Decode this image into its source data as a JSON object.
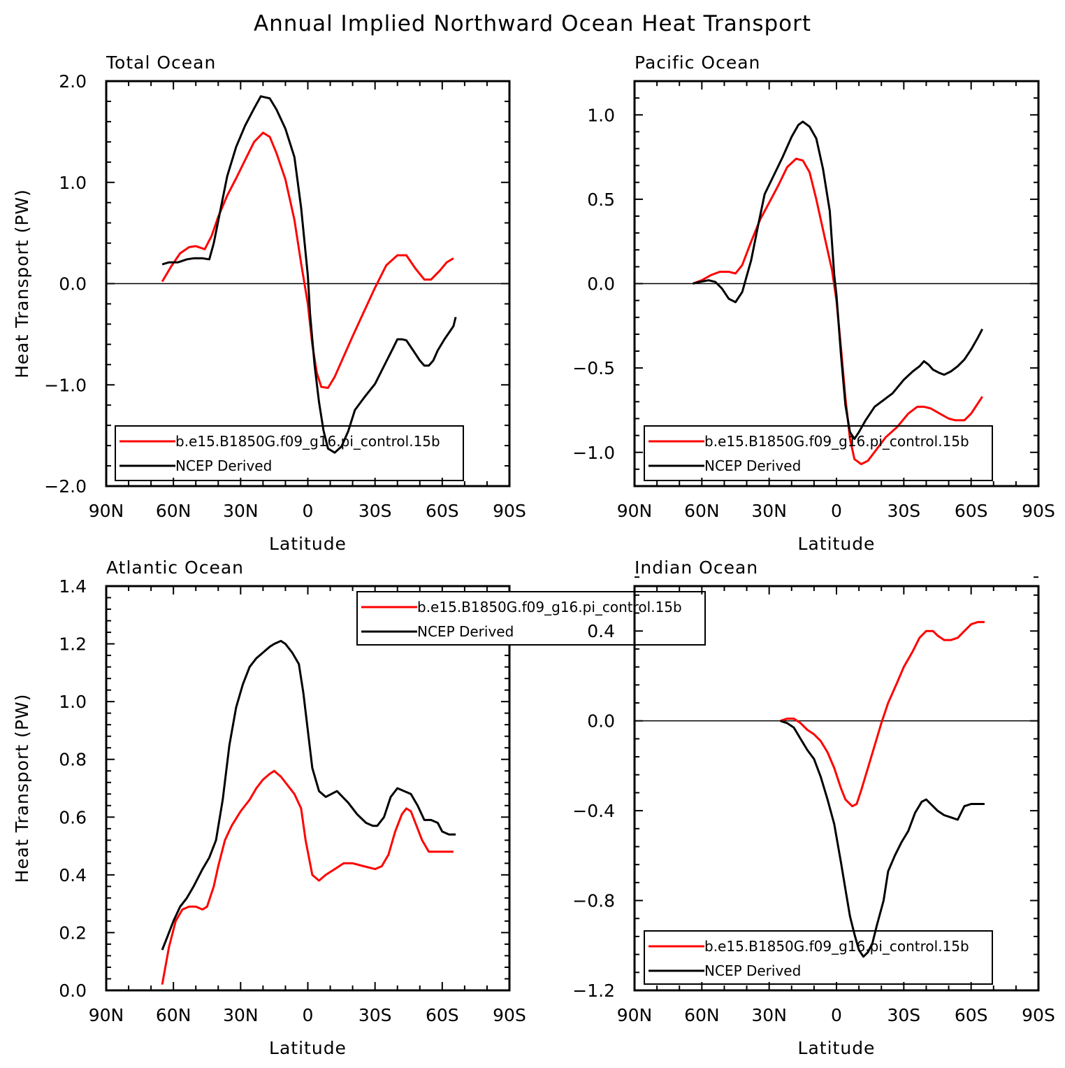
{
  "title": "Annual Implied Northward Ocean Heat Transport",
  "colors": {
    "model": "#ff0000",
    "obs": "#000000"
  },
  "chart_data": [
    {
      "type": "line",
      "title": "Total Ocean",
      "xlabel": "Latitude",
      "ylabel": "Heat Transport (PW)",
      "xlim": [
        90,
        -90
      ],
      "ylim": [
        -2.0,
        2.0
      ],
      "xticks": [
        90,
        60,
        30,
        0,
        -30,
        -60,
        -90
      ],
      "xtick_labels": [
        "90N",
        "60N",
        "30N",
        "0",
        "30S",
        "60S",
        "90S"
      ],
      "yticks": [
        -2.0,
        -1.0,
        0.0,
        1.0,
        2.0
      ],
      "ytick_labels": [
        "−2.0",
        "−1.0",
        "0.0",
        "1.0",
        "2.0"
      ],
      "grid": false,
      "zero_line": true,
      "legend_position": "bottom",
      "series": [
        {
          "name": "b.e15.B1850G.f09_g16.pi_control.15b",
          "color": "#ff0000",
          "x": [
            65,
            61,
            57,
            53,
            50,
            46,
            43,
            40,
            36,
            32,
            28,
            24,
            20,
            17,
            14,
            10,
            6,
            3,
            0,
            -2,
            -4,
            -6,
            -9,
            -12,
            -16,
            -20,
            -25,
            -30,
            -35,
            -40,
            -44,
            -48,
            -52,
            -55,
            -59,
            -62,
            -65
          ],
          "y": [
            0.02,
            0.17,
            0.3,
            0.36,
            0.37,
            0.34,
            0.47,
            0.66,
            0.87,
            1.04,
            1.22,
            1.4,
            1.49,
            1.45,
            1.29,
            1.03,
            0.63,
            0.2,
            -0.2,
            -0.6,
            -0.88,
            -1.02,
            -1.03,
            -0.92,
            -0.72,
            -0.52,
            -0.28,
            -0.04,
            0.18,
            0.28,
            0.28,
            0.15,
            0.04,
            0.04,
            0.13,
            0.21,
            0.25
          ]
        },
        {
          "name": "NCEP Derived",
          "color": "#000000",
          "x": [
            65,
            62,
            58,
            54,
            51,
            47,
            44,
            42,
            39,
            36,
            32,
            28,
            24,
            21,
            19,
            17,
            14,
            10,
            6,
            3,
            0,
            -1,
            -3,
            -5,
            -7,
            -9,
            -12,
            -15,
            -18,
            -21,
            -25,
            -30,
            -35,
            -38,
            -40,
            -42,
            -44,
            -47,
            -50,
            -52,
            -54,
            -56,
            -58,
            -61,
            -65,
            -66
          ],
          "y": [
            0.19,
            0.21,
            0.21,
            0.24,
            0.25,
            0.25,
            0.24,
            0.4,
            0.73,
            1.06,
            1.35,
            1.56,
            1.73,
            1.85,
            1.84,
            1.83,
            1.72,
            1.53,
            1.25,
            0.75,
            0.08,
            -0.3,
            -0.8,
            -1.17,
            -1.45,
            -1.63,
            -1.67,
            -1.61,
            -1.46,
            -1.25,
            -1.13,
            -0.99,
            -0.77,
            -0.64,
            -0.55,
            -0.55,
            -0.56,
            -0.66,
            -0.76,
            -0.81,
            -0.81,
            -0.76,
            -0.66,
            -0.55,
            -0.42,
            -0.33
          ]
        }
      ]
    },
    {
      "type": "line",
      "title": "Pacific Ocean",
      "xlabel": "Latitude",
      "ylabel": "",
      "xlim": [
        90,
        -90
      ],
      "ylim": [
        -1.2,
        1.2
      ],
      "xticks": [
        90,
        60,
        30,
        0,
        -30,
        -60,
        -90
      ],
      "xtick_labels": [
        "90N",
        "60N",
        "30N",
        "0",
        "30S",
        "60S",
        "90S"
      ],
      "yticks": [
        -1.0,
        -0.5,
        0.0,
        0.5,
        1.0
      ],
      "ytick_labels": [
        "−1.0",
        "−0.5",
        "0.0",
        "0.5",
        "1.0"
      ],
      "grid": false,
      "zero_line": true,
      "legend_position": "bottom",
      "series": [
        {
          "name": "b.e15.B1850G.f09_g16.pi_control.15b",
          "color": "#ff0000",
          "x": [
            64,
            60,
            56,
            52,
            48,
            45,
            42,
            38,
            34,
            30,
            26,
            22,
            18,
            15,
            12,
            9,
            5,
            2,
            0,
            -2,
            -4,
            -6,
            -8,
            -11,
            -14,
            -18,
            -22,
            -27,
            -32,
            -36,
            -39,
            -42,
            -46,
            -50,
            -53,
            -57,
            -60,
            -63,
            -65
          ],
          "y": [
            0.0,
            0.02,
            0.05,
            0.07,
            0.07,
            0.06,
            0.11,
            0.25,
            0.38,
            0.48,
            0.58,
            0.69,
            0.74,
            0.73,
            0.66,
            0.5,
            0.26,
            0.08,
            -0.1,
            -0.38,
            -0.68,
            -0.92,
            -1.04,
            -1.07,
            -1.05,
            -0.98,
            -0.91,
            -0.85,
            -0.77,
            -0.73,
            -0.73,
            -0.74,
            -0.77,
            -0.8,
            -0.81,
            -0.81,
            -0.77,
            -0.71,
            -0.67
          ]
        },
        {
          "name": "NCEP Derived",
          "color": "#000000",
          "x": [
            64,
            61,
            57,
            54,
            51,
            48,
            45,
            42,
            38,
            35,
            32,
            28,
            24,
            20,
            17,
            15,
            12,
            9,
            6,
            3,
            1,
            0,
            -2,
            -4,
            -6,
            -8,
            -10,
            -13,
            -17,
            -21,
            -25,
            -30,
            -34,
            -37,
            -39,
            -41,
            -43,
            -46,
            -48,
            -51,
            -54,
            -57,
            -60,
            -63,
            -65
          ],
          "y": [
            0.0,
            0.01,
            0.02,
            0.01,
            -0.03,
            -0.09,
            -0.11,
            -0.05,
            0.14,
            0.34,
            0.53,
            0.64,
            0.75,
            0.87,
            0.94,
            0.96,
            0.93,
            0.86,
            0.68,
            0.43,
            0.05,
            -0.07,
            -0.42,
            -0.72,
            -0.88,
            -0.92,
            -0.88,
            -0.81,
            -0.73,
            -0.69,
            -0.65,
            -0.57,
            -0.52,
            -0.49,
            -0.46,
            -0.48,
            -0.51,
            -0.53,
            -0.54,
            -0.52,
            -0.49,
            -0.45,
            -0.39,
            -0.32,
            -0.27
          ]
        }
      ]
    },
    {
      "type": "line",
      "title": "Atlantic Ocean",
      "xlabel": "Latitude",
      "ylabel": "Heat Transport (PW)",
      "xlim": [
        90,
        -90
      ],
      "ylim": [
        0.0,
        1.4
      ],
      "xticks": [
        90,
        60,
        30,
        0,
        -30,
        -60,
        -90
      ],
      "xtick_labels": [
        "90N",
        "60N",
        "30N",
        "0",
        "30S",
        "60S",
        "90S"
      ],
      "yticks": [
        0.0,
        0.2,
        0.4,
        0.6,
        0.8,
        1.0,
        1.2,
        1.4
      ],
      "ytick_labels": [
        "0.0",
        "0.2",
        "0.4",
        "0.6",
        "0.8",
        "1.0",
        "1.2",
        "1.4"
      ],
      "grid": false,
      "zero_line": false,
      "legend_position": "top",
      "series": [
        {
          "name": "b.e15.B1850G.f09_g16.pi_control.15b",
          "color": "#ff0000",
          "x": [
            65,
            62,
            59,
            56,
            53,
            50,
            47,
            45,
            42,
            40,
            37,
            34,
            30,
            26,
            23,
            20,
            17,
            15,
            12,
            9,
            6,
            3,
            1,
            -2,
            -5,
            -8,
            -12,
            -16,
            -20,
            -25,
            -30,
            -33,
            -36,
            -39,
            -42,
            -44,
            -46,
            -48,
            -51,
            -54,
            -57,
            -60,
            -63,
            -65
          ],
          "y": [
            0.02,
            0.15,
            0.24,
            0.28,
            0.29,
            0.29,
            0.28,
            0.29,
            0.36,
            0.43,
            0.52,
            0.57,
            0.62,
            0.66,
            0.7,
            0.73,
            0.75,
            0.76,
            0.74,
            0.71,
            0.68,
            0.63,
            0.52,
            0.4,
            0.38,
            0.4,
            0.42,
            0.44,
            0.44,
            0.43,
            0.42,
            0.43,
            0.47,
            0.55,
            0.61,
            0.63,
            0.62,
            0.58,
            0.52,
            0.48,
            0.48,
            0.48,
            0.48,
            0.48
          ]
        },
        {
          "name": "NCEP Derived",
          "color": "#000000",
          "x": [
            65,
            63,
            60,
            57,
            54,
            51,
            47,
            44,
            41,
            38,
            35,
            32,
            29,
            26,
            23,
            20,
            17,
            15,
            12,
            10,
            7,
            4,
            2,
            0,
            -2,
            -5,
            -8,
            -13,
            -18,
            -22,
            -26,
            -29,
            -31,
            -34,
            -37,
            -40,
            -43,
            -46,
            -49,
            -52,
            -55,
            -58,
            -60,
            -63,
            -66
          ],
          "y": [
            0.14,
            0.18,
            0.24,
            0.29,
            0.32,
            0.36,
            0.42,
            0.46,
            0.52,
            0.66,
            0.85,
            0.98,
            1.06,
            1.12,
            1.15,
            1.17,
            1.19,
            1.2,
            1.21,
            1.2,
            1.17,
            1.13,
            1.03,
            0.9,
            0.77,
            0.69,
            0.67,
            0.69,
            0.65,
            0.61,
            0.58,
            0.57,
            0.57,
            0.6,
            0.67,
            0.7,
            0.69,
            0.68,
            0.64,
            0.59,
            0.59,
            0.58,
            0.55,
            0.54,
            0.54
          ]
        }
      ]
    },
    {
      "type": "line",
      "title": "Indian Ocean",
      "xlabel": "Latitude",
      "ylabel": "",
      "xlim": [
        90,
        -90
      ],
      "ylim": [
        -1.2,
        0.6
      ],
      "xticks": [
        90,
        60,
        30,
        0,
        -30,
        -60,
        -90
      ],
      "xtick_labels": [
        "90N",
        "60N",
        "30N",
        "0",
        "30S",
        "60S",
        "90S"
      ],
      "yticks": [
        -1.2,
        -0.8,
        -0.4,
        0.0,
        0.4
      ],
      "ytick_labels": [
        "−1.2",
        "−0.8",
        "−0.4",
        "0.0",
        "0.4"
      ],
      "grid": false,
      "zero_line": true,
      "legend_position": "bottom",
      "series": [
        {
          "name": "b.e15.B1850G.f09_g16.pi_control.15b",
          "color": "#ff0000",
          "x": [
            25,
            22,
            19,
            16,
            13,
            10,
            7,
            4,
            1,
            -2,
            -4,
            -7,
            -9,
            -11,
            -14,
            -17,
            -20,
            -23,
            -27,
            -30,
            -34,
            -37,
            -40,
            -43,
            -45,
            -48,
            -51,
            -54,
            -57,
            -60,
            -63,
            -66
          ],
          "y": [
            0.0,
            0.01,
            0.01,
            -0.01,
            -0.04,
            -0.06,
            -0.09,
            -0.14,
            -0.21,
            -0.3,
            -0.35,
            -0.38,
            -0.37,
            -0.31,
            -0.21,
            -0.11,
            -0.01,
            0.08,
            0.17,
            0.24,
            0.31,
            0.37,
            0.4,
            0.4,
            0.38,
            0.36,
            0.36,
            0.37,
            0.4,
            0.43,
            0.44,
            0.44
          ],
          "extra": []
        },
        {
          "name": "NCEP Derived",
          "color": "#000000",
          "x": [
            25,
            22,
            19,
            16,
            13,
            10,
            7,
            4,
            1,
            -2,
            -4,
            -6,
            -8,
            -10,
            -12,
            -14,
            -16,
            -18,
            -21,
            -23,
            -26,
            -29,
            -32,
            -35,
            -38,
            -40,
            -43,
            -45,
            -48,
            -51,
            -54,
            -57,
            -60,
            -63,
            -66
          ],
          "y": [
            0.0,
            -0.01,
            -0.03,
            -0.08,
            -0.13,
            -0.17,
            -0.25,
            -0.35,
            -0.46,
            -0.63,
            -0.75,
            -0.87,
            -0.95,
            -1.02,
            -1.05,
            -1.03,
            -0.99,
            -0.91,
            -0.8,
            -0.67,
            -0.6,
            -0.54,
            -0.49,
            -0.41,
            -0.36,
            -0.35,
            -0.38,
            -0.4,
            -0.42,
            -0.43,
            -0.44,
            -0.38,
            -0.37,
            -0.37,
            -0.37
          ]
        }
      ]
    }
  ]
}
